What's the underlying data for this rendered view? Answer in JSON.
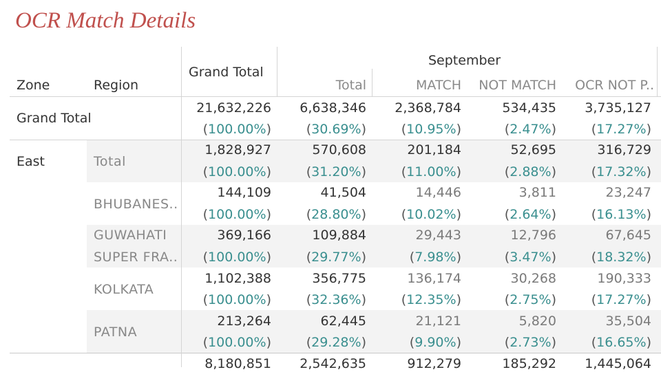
{
  "title": "OCR Match Details",
  "headers": {
    "zone": "Zone",
    "region": "Region",
    "grand_total": "Grand Total",
    "month": "September",
    "total": "Total",
    "match": "MATCH",
    "not_match": "NOT MATCH",
    "ocr_not": "OCR NOT P.."
  },
  "rows": [
    {
      "zone": "Grand Total",
      "region": "",
      "values": [
        "21,632,226",
        "6,638,346",
        "2,368,784",
        "534,435",
        "3,735,127"
      ],
      "pcts": [
        "100.00%",
        "30.69%",
        "10.95%",
        "2.47%",
        "17.27%"
      ]
    },
    {
      "zone": "East",
      "region": "Total",
      "values": [
        "1,828,927",
        "570,608",
        "201,184",
        "52,695",
        "316,729"
      ],
      "pcts": [
        "100.00%",
        "31.20%",
        "11.00%",
        "2.88%",
        "17.32%"
      ]
    },
    {
      "zone": "",
      "region": "BHUBANES..",
      "values": [
        "144,109",
        "41,504",
        "14,446",
        "3,811",
        "23,247"
      ],
      "pcts": [
        "100.00%",
        "28.80%",
        "10.02%",
        "2.64%",
        "16.13%"
      ]
    },
    {
      "zone": "",
      "region": "GUWAHATI",
      "region2": "SUPER FRA..",
      "values": [
        "369,166",
        "109,884",
        "29,443",
        "12,796",
        "67,645"
      ],
      "pcts": [
        "100.00%",
        "29.77%",
        "7.98%",
        "3.47%",
        "18.32%"
      ]
    },
    {
      "zone": "",
      "region": "KOLKATA",
      "values": [
        "1,102,388",
        "356,775",
        "136,174",
        "30,268",
        "190,333"
      ],
      "pcts": [
        "100.00%",
        "32.36%",
        "12.35%",
        "2.75%",
        "17.27%"
      ]
    },
    {
      "zone": "",
      "region": "PATNA",
      "values": [
        "213,264",
        "62,445",
        "21,121",
        "5,820",
        "35,504"
      ],
      "pcts": [
        "100.00%",
        "29.28%",
        "9.90%",
        "2.73%",
        "16.65%"
      ]
    },
    {
      "zone": "",
      "region": "",
      "values": [
        "8,180,851",
        "2,542,635",
        "912,279",
        "185,292",
        "1,445,064"
      ]
    }
  ]
}
